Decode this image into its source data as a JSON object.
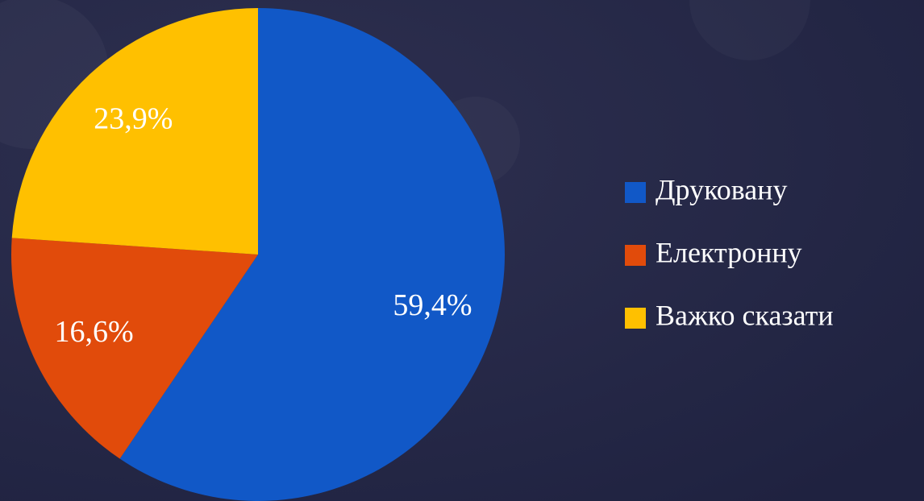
{
  "chart_data": {
    "type": "pie",
    "categories": [
      "Друковану",
      "Електронну",
      "Важко сказати"
    ],
    "values": [
      59.4,
      16.6,
      23.9
    ],
    "value_labels": [
      "59,4%",
      "16,6%",
      "23,9%"
    ],
    "colors": [
      "#1158c7",
      "#e14b0b",
      "#ffc000"
    ],
    "legend": "right"
  }
}
